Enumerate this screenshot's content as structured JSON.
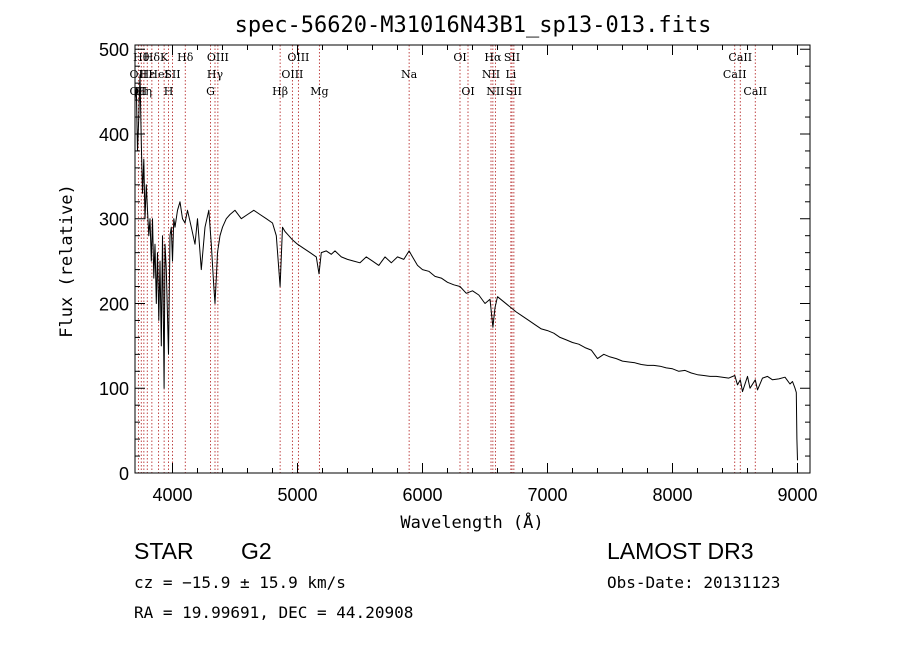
{
  "chart_data": {
    "type": "line",
    "title": "spec-56620-M31016N43B1_sp13-013.fits",
    "xlabel": "Wavelength (Å)",
    "ylabel": "Flux (relative)",
    "xlim": [
      3700,
      9100
    ],
    "ylim": [
      0,
      505
    ],
    "xticks": [
      4000,
      5000,
      6000,
      7000,
      8000,
      9000
    ],
    "yticks": [
      0,
      100,
      200,
      300,
      400,
      500
    ],
    "grid": false,
    "series": [
      {
        "name": "spectrum",
        "x": [
          3700,
          3710,
          3720,
          3730,
          3740,
          3750,
          3760,
          3770,
          3780,
          3790,
          3800,
          3810,
          3820,
          3830,
          3840,
          3850,
          3860,
          3870,
          3880,
          3890,
          3900,
          3910,
          3920,
          3933,
          3940,
          3950,
          3968,
          3980,
          3990,
          4000,
          4010,
          4020,
          4040,
          4060,
          4080,
          4100,
          4120,
          4150,
          4180,
          4200,
          4230,
          4260,
          4290,
          4310,
          4330,
          4340,
          4350,
          4360,
          4380,
          4400,
          4430,
          4460,
          4500,
          4550,
          4600,
          4650,
          4700,
          4750,
          4800,
          4830,
          4861,
          4880,
          4900,
          4930,
          4960,
          5000,
          5050,
          5100,
          5150,
          5172,
          5190,
          5230,
          5270,
          5300,
          5350,
          5400,
          5450,
          5500,
          5550,
          5600,
          5650,
          5700,
          5750,
          5800,
          5850,
          5893,
          5920,
          5960,
          6000,
          6050,
          6100,
          6150,
          6200,
          6250,
          6300,
          6350,
          6400,
          6450,
          6500,
          6540,
          6563,
          6580,
          6600,
          6650,
          6700,
          6750,
          6800,
          6850,
          6900,
          6950,
          7000,
          7050,
          7100,
          7150,
          7200,
          7250,
          7300,
          7350,
          7400,
          7450,
          7500,
          7550,
          7600,
          7650,
          7700,
          7750,
          7800,
          7850,
          7900,
          7950,
          8000,
          8050,
          8100,
          8150,
          8200,
          8250,
          8300,
          8350,
          8400,
          8450,
          8498,
          8520,
          8542,
          8560,
          8600,
          8620,
          8662,
          8680,
          8720,
          8760,
          8800,
          8850,
          8900,
          8940,
          8960,
          8980,
          8990,
          8995,
          9000
        ],
        "values": [
          440,
          455,
          380,
          420,
          470,
          390,
          330,
          370,
          300,
          340,
          310,
          280,
          300,
          250,
          300,
          230,
          270,
          200,
          260,
          180,
          250,
          150,
          280,
          100,
          270,
          240,
          140,
          280,
          290,
          250,
          300,
          290,
          310,
          320,
          300,
          295,
          310,
          290,
          270,
          300,
          240,
          290,
          310,
          270,
          220,
          200,
          230,
          260,
          280,
          290,
          300,
          305,
          310,
          300,
          305,
          310,
          305,
          300,
          295,
          280,
          220,
          290,
          285,
          280,
          275,
          270,
          265,
          260,
          255,
          235,
          260,
          262,
          258,
          262,
          255,
          252,
          250,
          248,
          255,
          250,
          245,
          255,
          248,
          255,
          252,
          262,
          255,
          245,
          240,
          238,
          232,
          230,
          225,
          222,
          220,
          212,
          215,
          210,
          200,
          205,
          172,
          195,
          208,
          202,
          196,
          190,
          185,
          180,
          175,
          170,
          168,
          165,
          160,
          157,
          154,
          152,
          148,
          145,
          135,
          140,
          137,
          135,
          132,
          131,
          130,
          128,
          127,
          127,
          126,
          124,
          123,
          120,
          121,
          118,
          116,
          115,
          114,
          114,
          113,
          112,
          115,
          104,
          110,
          96,
          114,
          100,
          110,
          98,
          112,
          114,
          110,
          111,
          113,
          105,
          108,
          100,
          95,
          40,
          15
        ]
      }
    ],
    "spectral_lines": [
      {
        "wavelength": 3727,
        "label": "OII",
        "row": 2
      },
      {
        "wavelength": 3727,
        "label": "OII",
        "row": 3
      },
      {
        "wavelength": 3750,
        "label": "Hθ",
        "row": 1
      },
      {
        "wavelength": 3771,
        "label": "Hη",
        "row": 3
      },
      {
        "wavelength": 3798,
        "label": "Hε",
        "row": 2
      },
      {
        "wavelength": 3835,
        "label": "Hδ",
        "row": 1
      },
      {
        "wavelength": 3889,
        "label": "HeI",
        "row": 2
      },
      {
        "wavelength": 3933,
        "label": "K",
        "row": 1
      },
      {
        "wavelength": 3968,
        "label": "H",
        "row": 3
      },
      {
        "wavelength": 4000,
        "label": "SII",
        "row": 2
      },
      {
        "wavelength": 4102,
        "label": "Hδ",
        "row": 1
      },
      {
        "wavelength": 4304,
        "label": "G",
        "row": 3
      },
      {
        "wavelength": 4340,
        "label": "Hγ",
        "row": 2
      },
      {
        "wavelength": 4363,
        "label": "OIII",
        "row": 1
      },
      {
        "wavelength": 4861,
        "label": "Hβ",
        "row": 3
      },
      {
        "wavelength": 4959,
        "label": "OIII",
        "row": 2
      },
      {
        "wavelength": 5007,
        "label": "OIII",
        "row": 1
      },
      {
        "wavelength": 5175,
        "label": "Mg",
        "row": 3
      },
      {
        "wavelength": 5893,
        "label": "Na",
        "row": 2
      },
      {
        "wavelength": 6300,
        "label": "OI",
        "row": 1
      },
      {
        "wavelength": 6364,
        "label": "OI",
        "row": 3
      },
      {
        "wavelength": 6548,
        "label": "NII",
        "row": 2
      },
      {
        "wavelength": 6563,
        "label": "Hα",
        "row": 1
      },
      {
        "wavelength": 6583,
        "label": "NII",
        "row": 3
      },
      {
        "wavelength": 6707,
        "label": "Li",
        "row": 2
      },
      {
        "wavelength": 6716,
        "label": "SII",
        "row": 1
      },
      {
        "wavelength": 6731,
        "label": "SII",
        "row": 3
      },
      {
        "wavelength": 8498,
        "label": "CaII",
        "row": 2
      },
      {
        "wavelength": 8542,
        "label": "CaII",
        "row": 1
      },
      {
        "wavelength": 8662,
        "label": "CaII",
        "row": 3
      }
    ]
  },
  "info": {
    "object_class": "STAR",
    "subclass": "G2",
    "survey": "LAMOST DR3",
    "redshift": "cz = −15.9 ± 15.9 km/s",
    "obs_date": "Obs-Date: 20131123",
    "coords": "RA =  19.99691, DEC =  44.20908"
  },
  "colors": {
    "line_marker": "#b01818",
    "spectrum": "#000000",
    "axes": "#000000"
  }
}
